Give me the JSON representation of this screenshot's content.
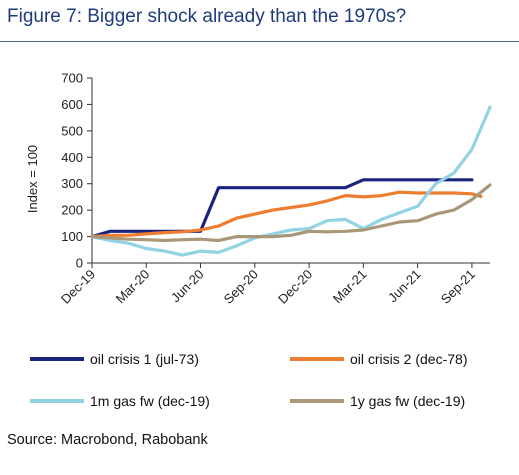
{
  "title": "Figure 7: Bigger shock already than the 1970s?",
  "source": "Source: Macrobond, Rabobank",
  "chart_data": {
    "type": "line",
    "title": "",
    "xlabel": "",
    "ylabel": "Index = 100",
    "ylim": [
      0,
      700
    ],
    "yticks": [
      "0",
      "100",
      "200",
      "300",
      "400",
      "500",
      "600",
      "700"
    ],
    "xticks": [
      "Dec-19",
      "Mar-20",
      "Jun-20",
      "Sep-20",
      "Dec-20",
      "Mar-21",
      "Jun-21",
      "Sep-21"
    ],
    "grid": false,
    "legend": "bottom",
    "series": [
      {
        "name": "oil crisis 1 (jul-73)",
        "color": "#1a237e",
        "points": [
          [
            0,
            100
          ],
          [
            1,
            120
          ],
          [
            2,
            120
          ],
          [
            3,
            120
          ],
          [
            4,
            120
          ],
          [
            5,
            120
          ],
          [
            6,
            120
          ],
          [
            7,
            285
          ],
          [
            8,
            285
          ],
          [
            9,
            285
          ],
          [
            10,
            285
          ],
          [
            11,
            285
          ],
          [
            12,
            285
          ],
          [
            13,
            285
          ],
          [
            14,
            285
          ],
          [
            15,
            315
          ],
          [
            16,
            315
          ],
          [
            17,
            315
          ],
          [
            18,
            315
          ],
          [
            19,
            315
          ],
          [
            20,
            315
          ],
          [
            21,
            315
          ]
        ]
      },
      {
        "name": "oil crisis 2 (dec-78)",
        "color": "#ed7d31",
        "points": [
          [
            0,
            100
          ],
          [
            1,
            105
          ],
          [
            2,
            105
          ],
          [
            3,
            110
          ],
          [
            4,
            115
          ],
          [
            5,
            118
          ],
          [
            6,
            125
          ],
          [
            7,
            140
          ],
          [
            8,
            170
          ],
          [
            9,
            185
          ],
          [
            10,
            200
          ],
          [
            11,
            210
          ],
          [
            12,
            220
          ],
          [
            13,
            235
          ],
          [
            14,
            255
          ],
          [
            15,
            250
          ],
          [
            16,
            255
          ],
          [
            17,
            268
          ],
          [
            18,
            265
          ],
          [
            19,
            265
          ],
          [
            20,
            265
          ],
          [
            21,
            262
          ],
          [
            21.5,
            252
          ]
        ]
      },
      {
        "name": "1m gas fw (dec-19)",
        "color": "#92d3e3",
        "points": [
          [
            0,
            100
          ],
          [
            1,
            85
          ],
          [
            2,
            75
          ],
          [
            3,
            55
          ],
          [
            4,
            45
          ],
          [
            5,
            30
          ],
          [
            6,
            45
          ],
          [
            7,
            40
          ],
          [
            8,
            65
          ],
          [
            9,
            95
          ],
          [
            10,
            110
          ],
          [
            11,
            125
          ],
          [
            12,
            130
          ],
          [
            13,
            160
          ],
          [
            14,
            165
          ],
          [
            15,
            130
          ],
          [
            16,
            165
          ],
          [
            17,
            190
          ],
          [
            18,
            215
          ],
          [
            19,
            300
          ],
          [
            20,
            340
          ],
          [
            21,
            430
          ],
          [
            22,
            590
          ]
        ]
      },
      {
        "name": "1y gas fw (dec-19)",
        "color": "#a99878",
        "points": [
          [
            0,
            100
          ],
          [
            1,
            95
          ],
          [
            2,
            90
          ],
          [
            3,
            88
          ],
          [
            4,
            85
          ],
          [
            5,
            88
          ],
          [
            6,
            90
          ],
          [
            7,
            85
          ],
          [
            8,
            100
          ],
          [
            9,
            100
          ],
          [
            10,
            100
          ],
          [
            11,
            105
          ],
          [
            12,
            120
          ],
          [
            13,
            118
          ],
          [
            14,
            120
          ],
          [
            15,
            125
          ],
          [
            16,
            140
          ],
          [
            17,
            155
          ],
          [
            18,
            160
          ],
          [
            19,
            185
          ],
          [
            20,
            200
          ],
          [
            21,
            240
          ],
          [
            22,
            295
          ]
        ]
      }
    ]
  }
}
